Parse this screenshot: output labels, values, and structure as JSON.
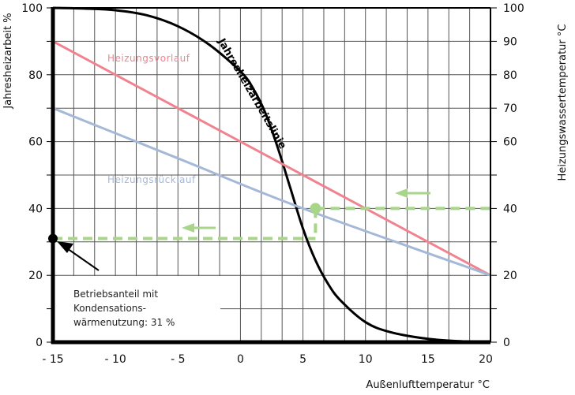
{
  "chart_data": {
    "type": "line",
    "xlabel": "Außenlufttemperatur °C",
    "ylabel_left": "Jahresheizarbeit %",
    "ylabel_right": "Heizungswassertemperatur °C",
    "xlim": [
      -15,
      20
    ],
    "ylim": [
      0,
      100
    ],
    "grid": true,
    "x_ticks": [
      -15,
      -10,
      -5,
      0,
      5,
      10,
      15,
      20
    ],
    "x_tick_labels": [
      "- 15",
      "- 10",
      "- 5",
      "0",
      "5",
      "10",
      "15",
      "20"
    ],
    "y_left_ticks": [
      0,
      20,
      40,
      60,
      80,
      100
    ],
    "y_right_ticks": [
      0,
      20,
      40,
      60,
      70,
      80,
      90,
      100
    ],
    "series": [
      {
        "name": "Jahresheizarbeitslinie",
        "color": "#000000",
        "x": [
          -15,
          -12.5,
          -10,
          -7.5,
          -5,
          -2.5,
          0,
          1,
          2,
          3,
          4,
          5,
          6,
          7,
          8,
          10,
          12,
          15,
          18,
          20
        ],
        "y": [
          100,
          99.8,
          99.3,
          97.8,
          94.5,
          89,
          81,
          76,
          68.5,
          58,
          46,
          34,
          24.5,
          17.5,
          12.5,
          6,
          3,
          1,
          0.2,
          0
        ]
      },
      {
        "name": "Heizungsvorlauf",
        "color": "#f0838f",
        "x": [
          -15,
          20
        ],
        "y": [
          90,
          20
        ]
      },
      {
        "name": "Heizungsrücklauf",
        "color": "#a4b8d8",
        "x": [
          -15,
          -5,
          5,
          20
        ],
        "y": [
          70,
          55,
          40,
          20
        ]
      }
    ],
    "guide": {
      "color": "#a8d58a",
      "point_x": 6,
      "water_temp": 40,
      "share": 31
    },
    "marker_point": {
      "x": -15,
      "y": 31
    },
    "annotation": [
      "Betriebsanteil mit",
      "Kondensations-",
      "wärmenutzung: 31 %"
    ]
  }
}
